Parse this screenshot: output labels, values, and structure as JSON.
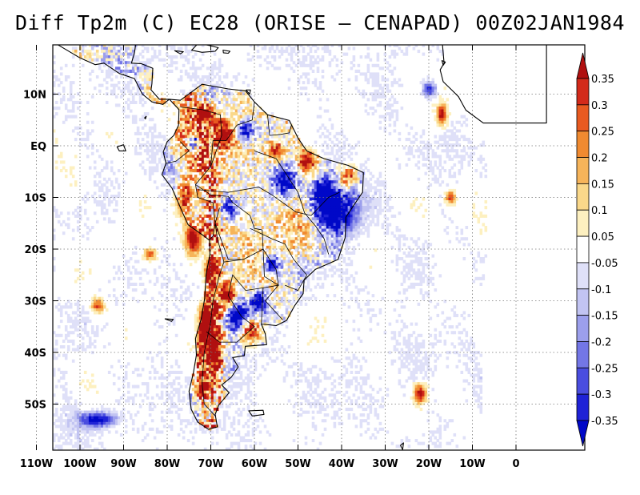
{
  "title": "Diff Tp2m (C) EC28 (ORISE – CENAPAD) 00Z02JAN1984",
  "lat_labels": [
    "10N",
    "EQ",
    "10S",
    "20S",
    "30S",
    "40S",
    "50S"
  ],
  "lon_labels": [
    "110W",
    "100W",
    "90W",
    "80W",
    "70W",
    "60W",
    "50W",
    "40W",
    "30W",
    "20W",
    "10W",
    "0"
  ],
  "colorbar": {
    "labels": [
      "0.35",
      "0.3",
      "0.25",
      "0.2",
      "0.15",
      "0.1",
      "0.05",
      "-0.05",
      "-0.1",
      "-0.15",
      "-0.2",
      "-0.25",
      "-0.3",
      "-0.35"
    ],
    "colors": [
      "#b01010",
      "#d32a1a",
      "#e85a20",
      "#f08a30",
      "#f6b45a",
      "#fad88a",
      "#fdf0c0",
      "#ffffff",
      "#dfe0f8",
      "#c2c4f2",
      "#9c9fec",
      "#7376e6",
      "#4a4ddf",
      "#1f22d6",
      "#0008c8"
    ]
  },
  "chart_data": {
    "type": "heatmap",
    "title": "Diff Tp2m (C) EC28 (ORISE – CENAPAD) 00Z02JAN1984",
    "x_range": [
      -117,
      7
    ],
    "y_range": [
      -59,
      19
    ],
    "color_scale_limits": [
      -0.35,
      0.35
    ],
    "contour_levels": [
      -0.35,
      -0.3,
      -0.25,
      -0.2,
      -0.15,
      -0.1,
      -0.05,
      0.05,
      0.1,
      0.15,
      0.2,
      0.25,
      0.3,
      0.35
    ],
    "grid": "dotted",
    "domain": "South America and adjacent oceans",
    "strong_positive_regions": [
      "Andes (west coast of South America)",
      "northern South America",
      "central Argentina"
    ],
    "strong_negative_regions": [
      "northeast Brazil",
      "central Argentina",
      "scattered interior South America"
    ]
  }
}
